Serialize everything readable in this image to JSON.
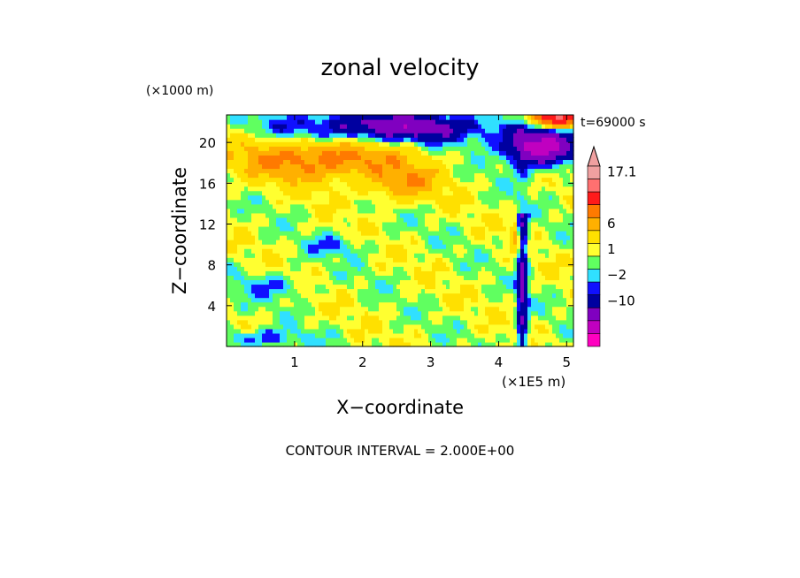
{
  "chart_data": {
    "type": "heatmap",
    "title": "zonal velocity",
    "time_label": "t=69000 s",
    "xlabel": "X−coordinate",
    "ylabel": "Z−coordinate",
    "x_unit": "(×1E5 m)",
    "y_unit": "(×1000 m)",
    "footnote": "CONTOUR INTERVAL = 2.000E+00",
    "xlim": [
      0,
      5.1
    ],
    "ylim": [
      0,
      22.7
    ],
    "xticks": [
      "1",
      "2",
      "3",
      "4",
      "5"
    ],
    "yticks": [
      "4",
      "8",
      "12",
      "16",
      "20"
    ],
    "colorbar": {
      "labels": [
        "17.1",
        "6",
        "1",
        "−2",
        "−10"
      ],
      "colors": [
        "#f0a0a0",
        "#ff7070",
        "#ff1a1a",
        "#ff7a00",
        "#ffb000",
        "#ffe000",
        "#ffff30",
        "#60ff60",
        "#30e0ff",
        "#1010ff",
        "#0000a0",
        "#8000c0",
        "#c000c0",
        "#ff00c0"
      ]
    },
    "field_note": "Approximate zonal velocity field: positive (orange/red) band near 17-20 km on the left half, strong negative (blue/purple) region near 18-21 km between x=2.3 and 5, mostly weak positive (yellow/green) values below 12 km with scattered cyan/blue streaks."
  }
}
